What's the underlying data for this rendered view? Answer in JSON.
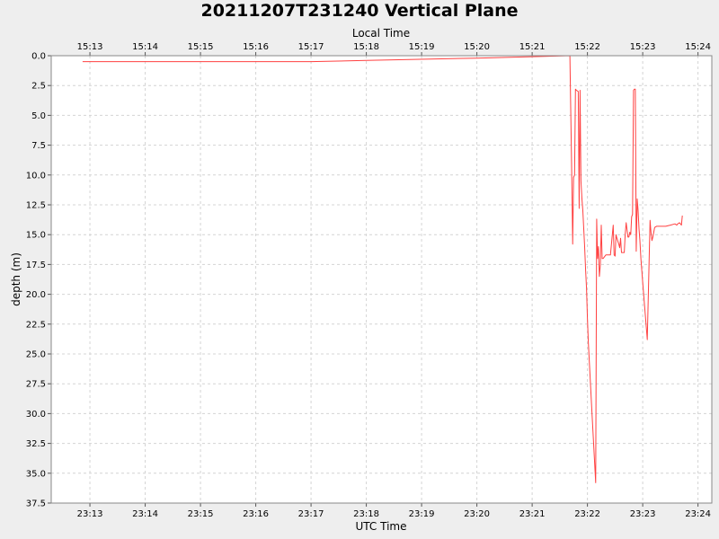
{
  "chart_data": {
    "type": "line",
    "title": "20211207T231240 Vertical Plane",
    "xlabel": "UTC Time",
    "x2label": "Local Time",
    "ylabel": "depth (m)",
    "y_inverted": true,
    "ylim": [
      0,
      37.5
    ],
    "xlim": [
      "23:12:18",
      "23:24:15"
    ],
    "grid": true,
    "x_ticks": [
      "23:13",
      "23:14",
      "23:15",
      "23:16",
      "23:17",
      "23:18",
      "23:19",
      "23:20",
      "23:21",
      "23:22",
      "23:23",
      "23:24"
    ],
    "x2_ticks": [
      "15:13",
      "15:14",
      "15:15",
      "15:16",
      "15:17",
      "15:18",
      "15:19",
      "15:20",
      "15:21",
      "15:22",
      "15:23",
      "15:24"
    ],
    "y_ticks": [
      "0.0",
      "2.5",
      "5.0",
      "7.5",
      "10.0",
      "12.5",
      "15.0",
      "17.5",
      "20.0",
      "22.5",
      "25.0",
      "27.5",
      "30.0",
      "32.5",
      "35.0",
      "37.5"
    ],
    "line_color": "#ff4040",
    "series": [
      {
        "x": [
          "23:12:52",
          "23:17:00",
          "23:18:00",
          "23:20:00",
          "23:21:41",
          "23:21:43",
          "23:21:44",
          "23:21:45",
          "23:21:46",
          "23:21:47",
          "23:21:48",
          "23:21:50",
          "23:21:51",
          "23:21:52",
          "23:21:53",
          "23:21:54",
          "23:21:55",
          "23:21:57",
          "23:21:58",
          "23:21:59",
          "23:22:00",
          "23:22:01",
          "23:22:05",
          "23:22:09",
          "23:22:10",
          "23:22:11",
          "23:22:12",
          "23:22:13",
          "23:22:14",
          "23:22:15",
          "23:22:16",
          "23:22:17",
          "23:22:18",
          "23:22:19",
          "23:22:20",
          "23:22:25",
          "23:22:28",
          "23:22:29",
          "23:22:30",
          "23:22:31",
          "23:22:32",
          "23:22:34",
          "23:22:35",
          "23:22:36",
          "23:22:37",
          "23:22:38",
          "23:22:39",
          "23:22:40",
          "23:22:41",
          "23:22:42",
          "23:22:44",
          "23:22:45",
          "23:22:46",
          "23:22:47",
          "23:22:48",
          "23:22:49",
          "23:22:50",
          "23:22:51",
          "23:22:52",
          "23:22:53",
          "23:22:54",
          "23:22:55",
          "23:22:56",
          "23:22:57",
          "23:22:58",
          "23:22:59",
          "23:23:00",
          "23:23:05",
          "23:23:08",
          "23:23:09",
          "23:23:10",
          "23:23:11",
          "23:23:13",
          "23:23:15",
          "23:23:20",
          "23:23:25",
          "23:23:30",
          "23:23:35",
          "23:23:37",
          "23:23:38",
          "23:23:40",
          "23:23:42",
          "23:23:43"
        ],
        "y": [
          0.5,
          0.5,
          0.4,
          0.2,
          0.0,
          10.2,
          15.8,
          10.2,
          10.0,
          2.8,
          2.9,
          3.0,
          12.8,
          2.9,
          10.5,
          12.0,
          13.0,
          16.0,
          18.0,
          19.5,
          22.0,
          24.0,
          30.0,
          35.8,
          13.7,
          17.0,
          16.0,
          18.5,
          17.5,
          14.2,
          17.0,
          17.0,
          16.9,
          16.8,
          16.7,
          16.7,
          14.2,
          16.7,
          16.8,
          15.0,
          15.3,
          15.8,
          16.1,
          15.3,
          16.5,
          16.5,
          16.5,
          16.5,
          15.0,
          14.0,
          15.2,
          15.2,
          14.8,
          15.0,
          13.5,
          13.3,
          2.9,
          2.8,
          2.8,
          16.4,
          12.0,
          13.0,
          14.5,
          15.5,
          17.0,
          18.0,
          19.0,
          23.8,
          13.8,
          14.8,
          15.5,
          15.2,
          14.4,
          14.3,
          14.3,
          14.3,
          14.2,
          14.1,
          14.2,
          14.1,
          14.0,
          14.2,
          13.4
        ]
      }
    ]
  }
}
